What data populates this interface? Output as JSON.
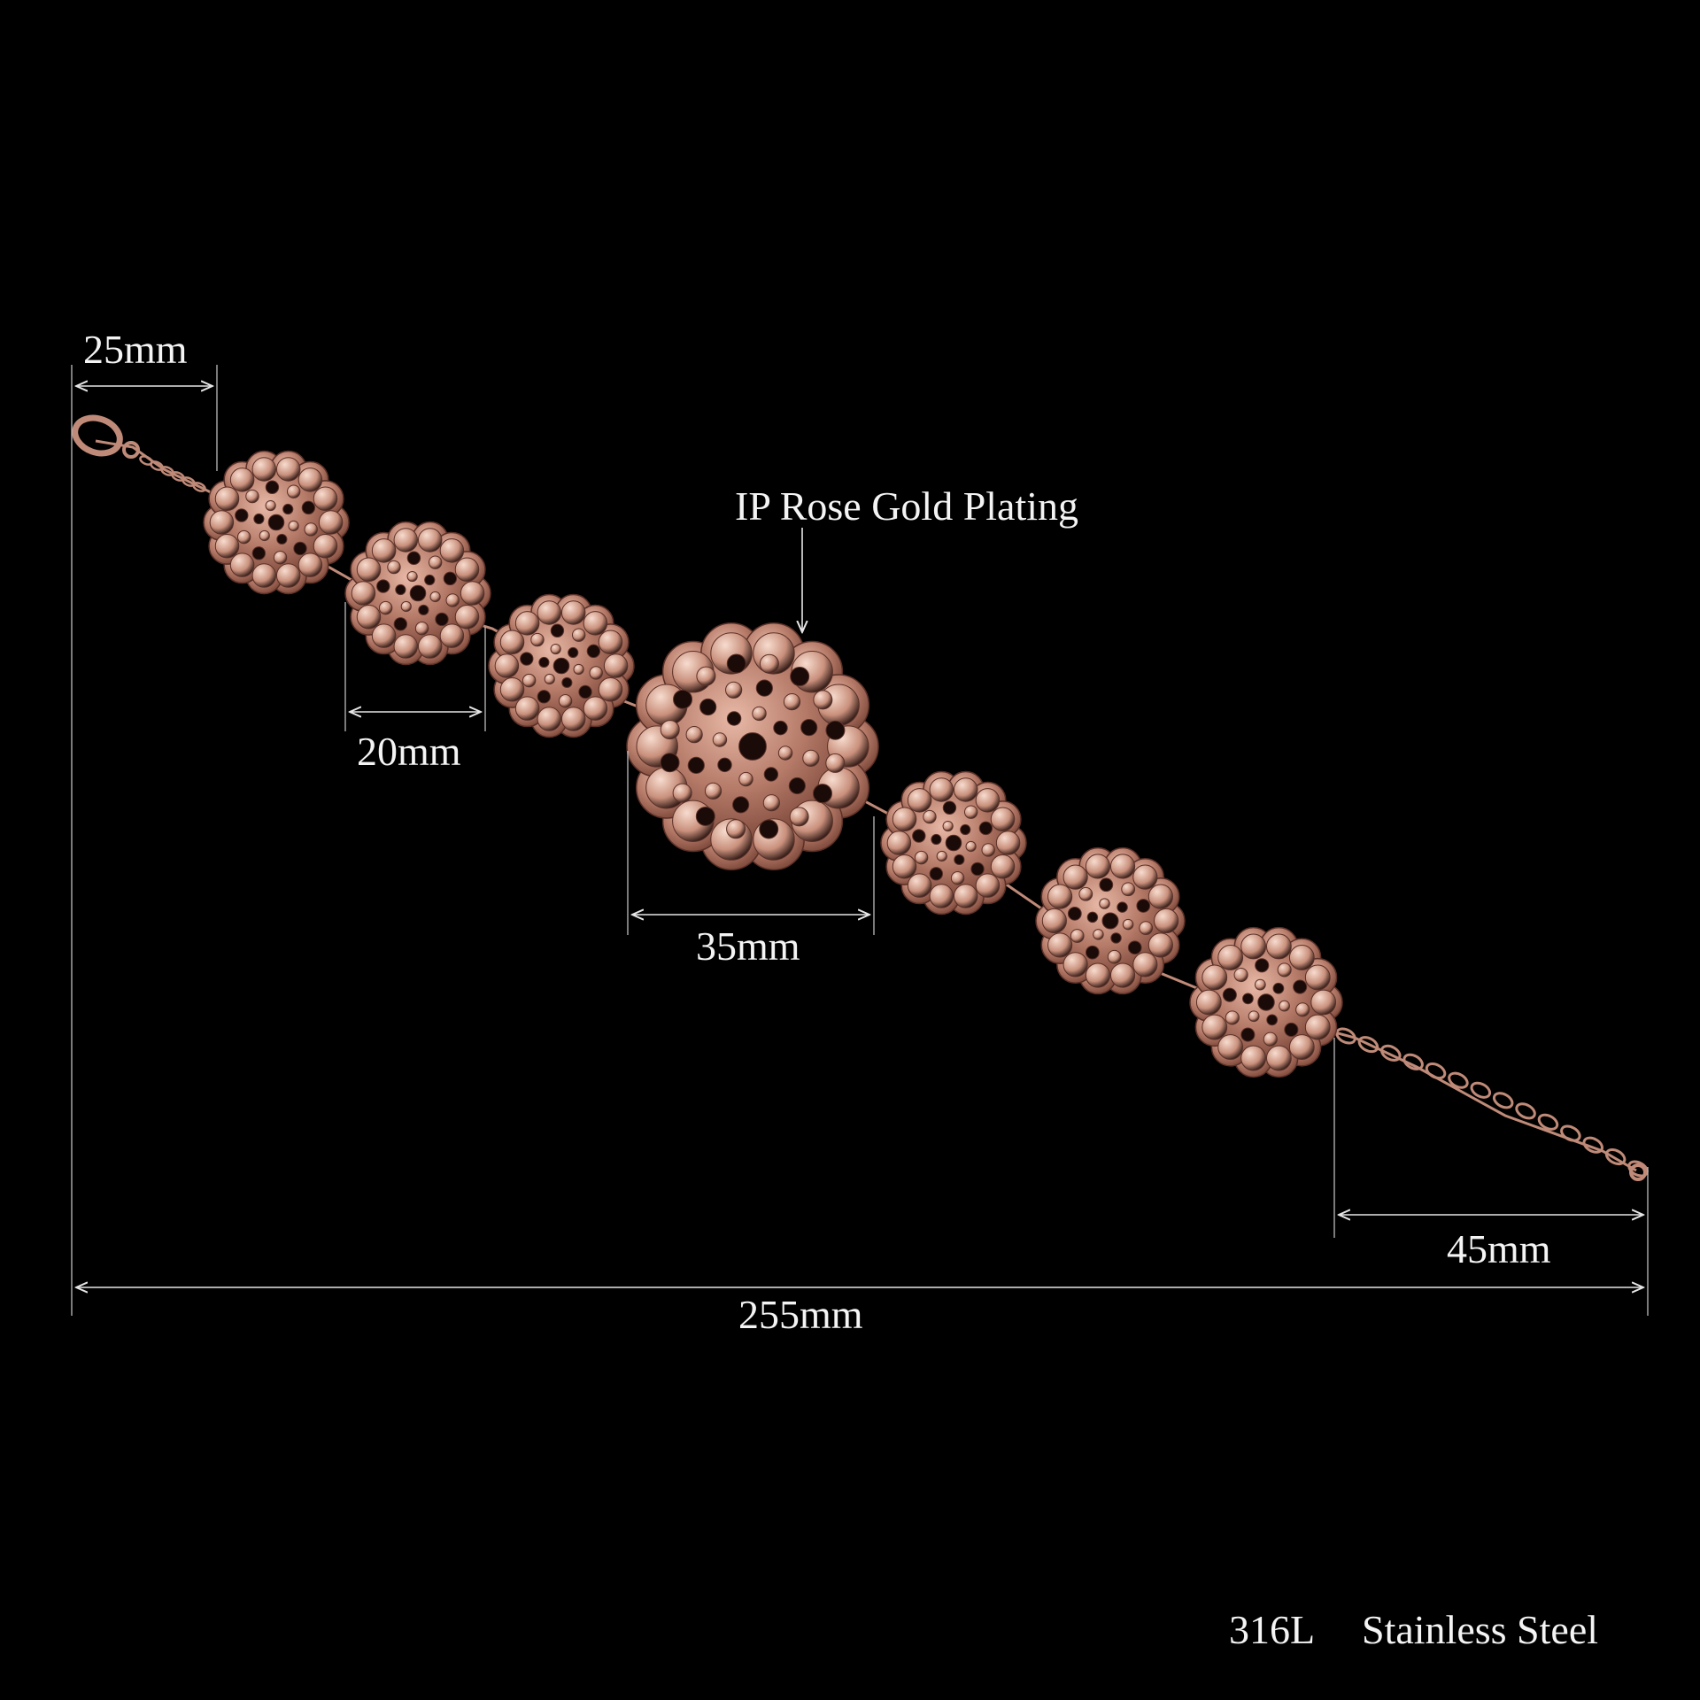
{
  "dimensions": {
    "clasp_length": "25mm",
    "small_medallion": "20mm",
    "large_medallion": "35mm",
    "extender_length": "45mm",
    "total_length": "255mm"
  },
  "plating_callout": "IP Rose Gold Plating",
  "material": {
    "grade": "316L",
    "name": "Stainless Steel"
  },
  "colors": {
    "background": "#000000",
    "rose_gold": "#c08a78",
    "rose_gold_highlight": "#f3d2c4",
    "rose_gold_dark": "#5a3028",
    "dimension_lines": "#e6e6e6"
  }
}
